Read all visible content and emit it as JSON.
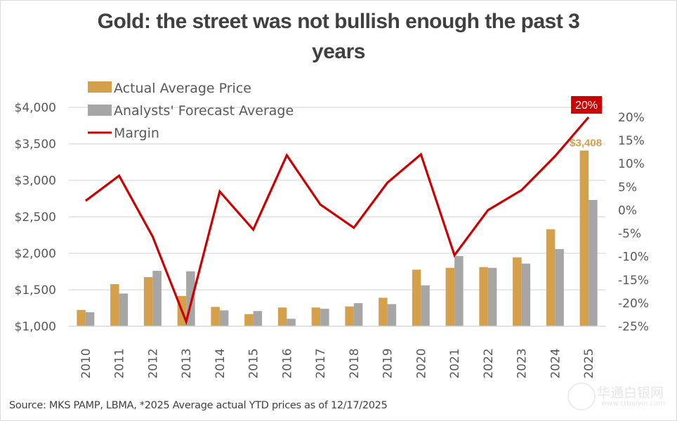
{
  "chart_data": {
    "type": "bar",
    "title": "Gold: the street was not bullish enough the past 3 years",
    "title_lines": [
      "Gold: the street was not bullish enough the past 3",
      "years"
    ],
    "xlabel": "",
    "ylabel": "",
    "categories": [
      "2010",
      "2011",
      "2012",
      "2013",
      "2014",
      "2015",
      "2016",
      "2017",
      "2018",
      "2019",
      "2020",
      "2021",
      "2022",
      "2023",
      "2024",
      "2025"
    ],
    "series": [
      {
        "name": "Actual Average Price",
        "type": "bar",
        "axis": "left",
        "color": "#D4A04C",
        "values": [
          1224,
          1577,
          1673,
          1416,
          1266,
          1167,
          1257,
          1257,
          1272,
          1391,
          1776,
          1801,
          1811,
          1945,
          2330,
          3408
        ]
      },
      {
        "name": "Analysts' Forecast Average",
        "type": "bar",
        "axis": "left",
        "color": "#A6A6A6",
        "values": [
          1192,
          1449,
          1760,
          1753,
          1218,
          1209,
          1103,
          1240,
          1317,
          1304,
          1561,
          1962,
          1801,
          1859,
          2058,
          2731
        ]
      },
      {
        "name": "Margin",
        "type": "line",
        "axis": "right",
        "color": "#CC0000",
        "values": [
          2,
          7.4,
          -5.7,
          -24,
          4,
          -4.2,
          11.8,
          1.2,
          -3.8,
          5.9,
          12,
          -9.7,
          0,
          4.3,
          11.6,
          20
        ]
      }
    ],
    "left_axis": {
      "ylim": [
        1000,
        4000
      ],
      "ticks": [
        1000,
        1500,
        2000,
        2500,
        3000,
        3500,
        4000
      ],
      "tick_labels": [
        "$1,000",
        "$1,500",
        "$2,000",
        "$2,500",
        "$3,000",
        "$3,500",
        "$4,000"
      ]
    },
    "right_axis": {
      "ylim": [
        -25,
        20
      ],
      "ticks": [
        -25,
        -20,
        -15,
        -10,
        -5,
        0,
        5,
        10,
        15,
        20
      ],
      "tick_labels": [
        "-25%",
        "-20%",
        "-15%",
        "-10%",
        "-5%",
        "0%",
        "5%",
        "10%",
        "15%",
        "20%"
      ]
    },
    "annotations": [
      {
        "text": "$3,408",
        "target": "Actual Average Price",
        "category": "2025",
        "color": "#D4A04C"
      },
      {
        "text": "20%",
        "target": "Margin",
        "category": "2025",
        "style": "red-box",
        "color": "#CC0000"
      }
    ],
    "legend": {
      "position": "top-left",
      "entries": [
        "Actual Average Price",
        "Analysts' Forecast Average",
        "Margin"
      ]
    },
    "grid": true
  },
  "source_note": "Source: MKS PAMP, LBMA, *2025 Average actual YTD prices as of 12/17/2025",
  "watermark": {
    "text": "华通白银网",
    "url": "www.ctbaiyin.com"
  }
}
